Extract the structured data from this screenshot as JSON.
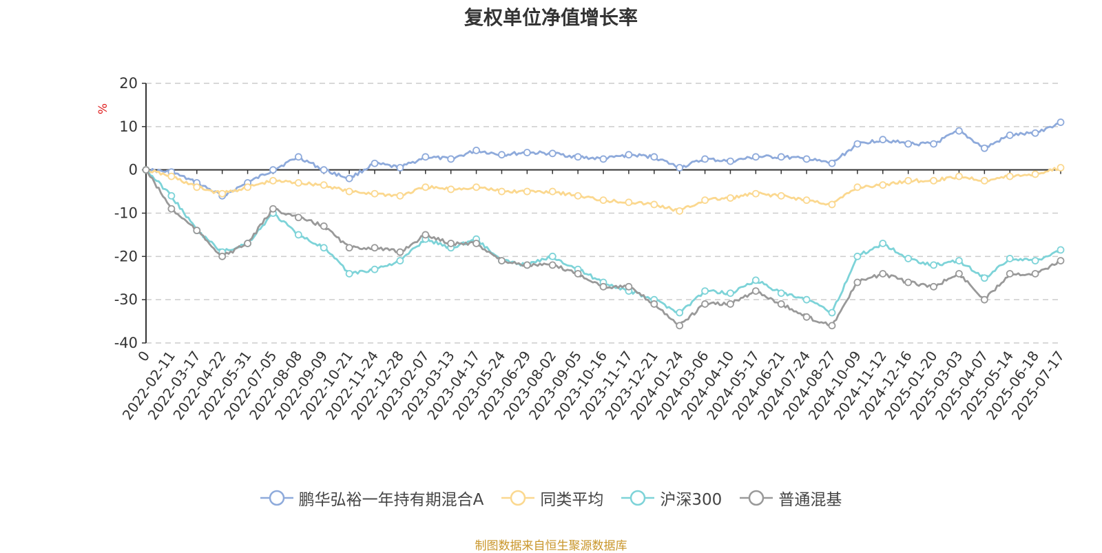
{
  "chart_data": {
    "type": "line",
    "title": "复权单位净值增长率",
    "ylabel": "%",
    "ylim": [
      -40,
      20
    ],
    "yticks": [
      20,
      10,
      0,
      -10,
      -20,
      -30,
      -40
    ],
    "grid": true,
    "legend_position": "bottom",
    "source": "制图数据来自恒生聚源数据库",
    "xticks": [
      "0",
      "2022-02-11",
      "2022-03-17",
      "2022-04-22",
      "2022-05-31",
      "2022-07-05",
      "2022-08-08",
      "2022-09-09",
      "2022-10-21",
      "2022-11-24",
      "2022-12-28",
      "2023-02-07",
      "2023-03-13",
      "2023-04-17",
      "2023-05-24",
      "2023-06-29",
      "2023-08-02",
      "2023-09-05",
      "2023-10-16",
      "2023-11-17",
      "2023-12-21",
      "2024-01-24",
      "2024-03-06",
      "2024-04-10",
      "2024-05-17",
      "2024-06-21",
      "2024-07-24",
      "2024-08-27",
      "2024-10-09",
      "2024-11-12",
      "2024-12-16",
      "2025-01-20",
      "2025-03-03",
      "2025-04-07",
      "2025-05-14",
      "2025-06-18",
      "2025-07-17"
    ],
    "series": [
      {
        "name": "鹏华弘裕一年持有期混合A",
        "color": "#8eaadb",
        "values": [
          0,
          -0.5,
          -3,
          -6,
          -3,
          0,
          3,
          0,
          -2,
          1.5,
          0.5,
          3,
          2.5,
          4.5,
          3.5,
          4,
          3.8,
          3,
          2.5,
          3.5,
          3,
          0.5,
          2.5,
          2,
          3,
          3,
          2.5,
          1.5,
          6,
          7,
          6,
          6,
          9,
          5,
          8,
          8.5,
          11
        ]
      },
      {
        "name": "同类平均",
        "color": "#fbd88f",
        "values": [
          0,
          -1.5,
          -4,
          -5.5,
          -4,
          -2.5,
          -3,
          -3.5,
          -5,
          -5.5,
          -6,
          -4,
          -4.5,
          -4,
          -5,
          -5,
          -5,
          -6,
          -7,
          -7.5,
          -8,
          -9.5,
          -7,
          -6.5,
          -5.5,
          -6,
          -7,
          -8,
          -4,
          -3.5,
          -2.5,
          -2.5,
          -1.5,
          -2.5,
          -1.5,
          -1,
          0.5
        ]
      },
      {
        "name": "沪深300",
        "color": "#7dd3d8",
        "values": [
          0,
          -6,
          -14,
          -19,
          -17,
          -10,
          -15,
          -18,
          -24,
          -23,
          -21,
          -16,
          -18,
          -16,
          -21,
          -22,
          -20,
          -23,
          -26,
          -28,
          -30,
          -33,
          -28,
          -28.5,
          -25.5,
          -28.5,
          -30,
          -33,
          -20,
          -17,
          -20.5,
          -22,
          -21,
          -25,
          -20.5,
          -21,
          -18.5
        ]
      },
      {
        "name": "普通混基",
        "color": "#999999",
        "values": [
          0,
          -9,
          -14,
          -20,
          -17,
          -9,
          -11,
          -13,
          -18,
          -18,
          -19,
          -15,
          -17,
          -17,
          -21,
          -22,
          -22,
          -24,
          -27,
          -27,
          -31,
          -36,
          -31,
          -31,
          -28,
          -31,
          -34,
          -36,
          -26,
          -24,
          -26,
          -27,
          -24,
          -30,
          -24,
          -24,
          -21
        ]
      }
    ]
  }
}
